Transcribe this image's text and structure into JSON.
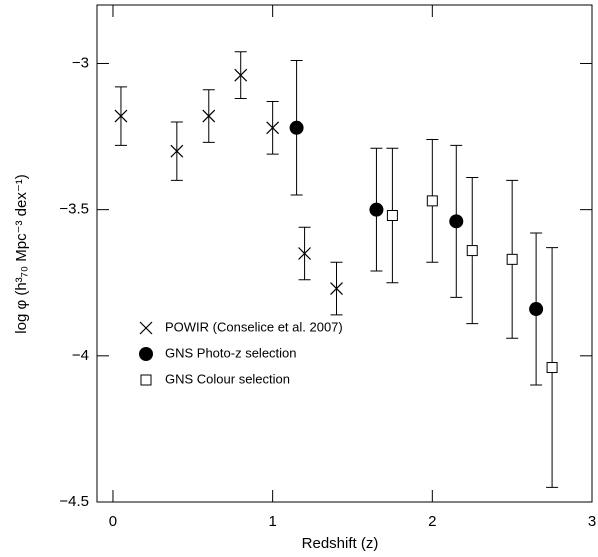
{
  "chart_data": {
    "type": "scatter",
    "x_label": "Redshift (z)",
    "y_label": "log φ (h³₇₀ Mpc⁻³ dex⁻¹)",
    "xlim": [
      -0.1,
      3.0
    ],
    "ylim": [
      -4.5,
      -2.8
    ],
    "xticks": [
      0,
      1,
      2,
      3
    ],
    "yticks": [
      {
        "value": -3,
        "label": "−3"
      },
      {
        "value": -3.5,
        "label": "−3.5"
      },
      {
        "value": -4,
        "label": "−4"
      },
      {
        "value": -4.5,
        "label": "−4.5"
      }
    ],
    "color": "#000000",
    "series": [
      {
        "name": "POWIR (Conselice et al. 2007)",
        "marker": "cross",
        "x": [
          0.05,
          0.4,
          0.6,
          0.8,
          1.0,
          1.2,
          1.4
        ],
        "values": [
          -3.18,
          -3.3,
          -3.18,
          -3.04,
          -3.22,
          -3.65,
          -3.77
        ],
        "errors": [
          0.1,
          0.1,
          0.09,
          0.08,
          0.09,
          0.09,
          0.09
        ]
      },
      {
        "name": "GNS Photo-z selection",
        "marker": "circle",
        "x": [
          1.15,
          1.65,
          2.15,
          2.65
        ],
        "values": [
          -3.22,
          -3.5,
          -3.54,
          -3.84
        ],
        "errors": [
          0.23,
          0.21,
          0.26,
          0.26
        ]
      },
      {
        "name": "GNS Colour selection",
        "marker": "square",
        "x": [
          1.75,
          2.0,
          2.25,
          2.5,
          2.75
        ],
        "values": [
          -3.52,
          -3.47,
          -3.64,
          -3.67,
          -4.04
        ],
        "errors": [
          0.23,
          0.21,
          0.25,
          0.27,
          0.41
        ]
      }
    ]
  }
}
